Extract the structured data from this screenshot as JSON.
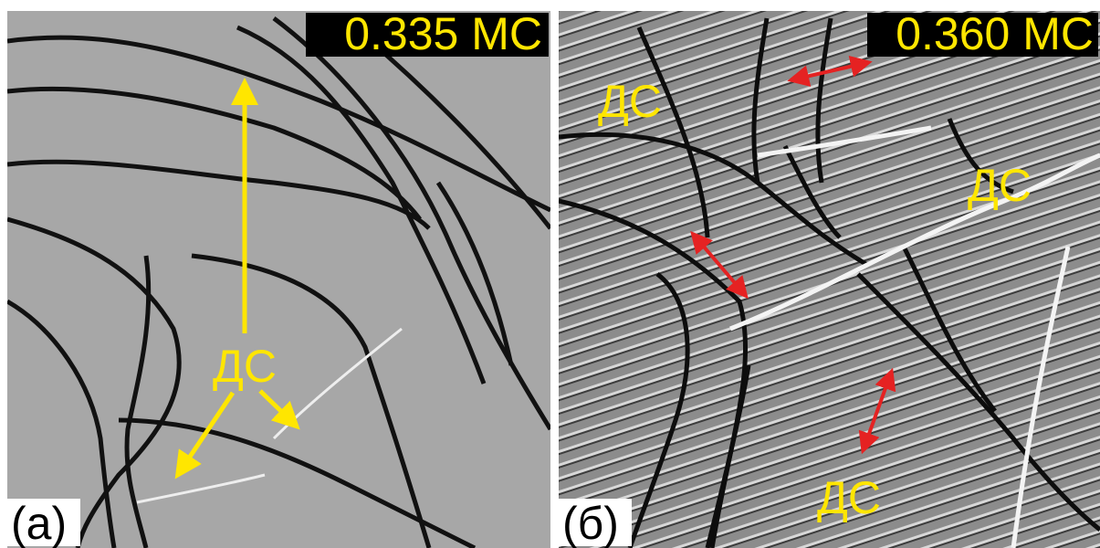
{
  "panels": [
    {
      "label": "(а)",
      "coverage": "0.335 МС",
      "annotations": [
        "ДС"
      ]
    },
    {
      "label": "(б)",
      "coverage": "0.360 МС",
      "annotations": [
        "ДС",
        "ДС",
        "ДС"
      ]
    }
  ]
}
